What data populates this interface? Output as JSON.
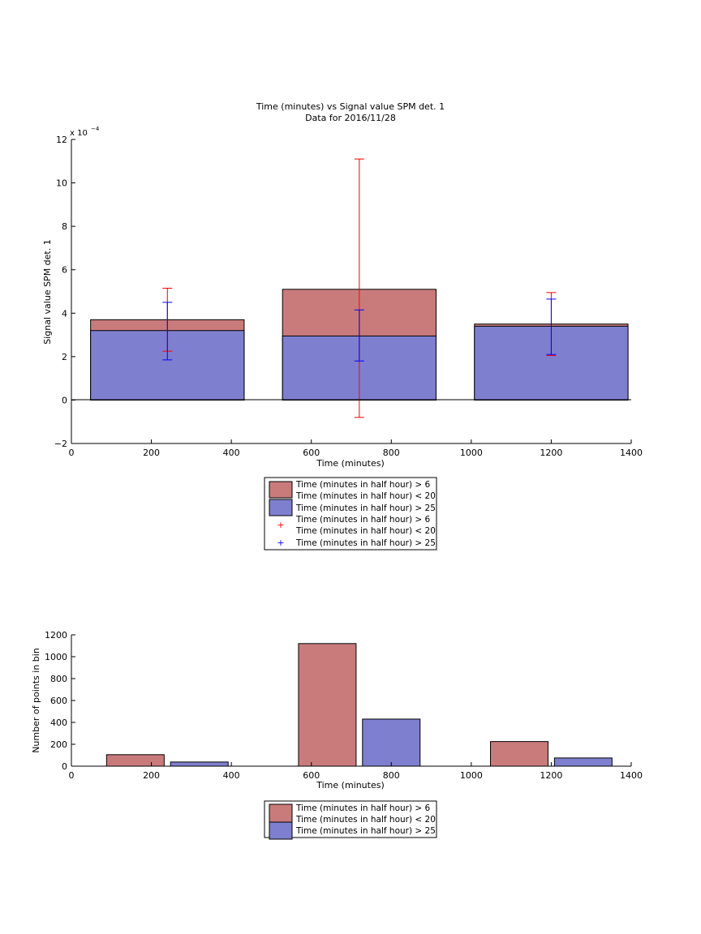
{
  "chart_data": [
    {
      "type": "bar",
      "title": "Time (minutes) vs Signal value SPM det. 1",
      "subtitle": "Data for 2016/11/28",
      "xlabel": "Time (minutes)",
      "ylabel": "Signal value SPM det. 1",
      "exponent_label": "x 10",
      "exponent_power": "−4",
      "xlim": [
        0,
        1400
      ],
      "ylim": [
        -2,
        12
      ],
      "xticks": [
        "0",
        "200",
        "400",
        "600",
        "800",
        "1000",
        "1200",
        "1400"
      ],
      "yticks": [
        "−2",
        "0",
        "2",
        "4",
        "6",
        "8",
        "10",
        "12"
      ],
      "bar_half_width": 192,
      "bars": [
        {
          "x": 240,
          "value": 3.7,
          "error_low": 2.25,
          "error_high": 5.15,
          "series": 0
        },
        {
          "x": 240,
          "value": 3.2,
          "error_low": 1.85,
          "error_high": 4.5,
          "series": 1
        },
        {
          "x": 720,
          "value": 5.1,
          "error_low": -0.8,
          "error_high": 11.1,
          "series": 0
        },
        {
          "x": 720,
          "value": 2.95,
          "error_low": 1.8,
          "error_high": 4.15,
          "series": 1
        },
        {
          "x": 1200,
          "value": 3.5,
          "error_low": 2.05,
          "error_high": 4.95,
          "series": 0
        },
        {
          "x": 1200,
          "value": 3.4,
          "error_low": 2.1,
          "error_high": 4.65,
          "series": 1
        }
      ],
      "legend": [
        {
          "line1": "Time (minutes in half hour) > 6",
          "line2": "Time (minutes in half hour) < 20",
          "kind": "patch",
          "color": "#c97b7b"
        },
        {
          "line1": "Time (minutes in half hour) > 25",
          "line2": "",
          "kind": "patch",
          "color": "#7f7fcf"
        },
        {
          "line1": "Time (minutes in half hour) > 6",
          "line2": "Time (minutes in half hour) < 20",
          "kind": "marker",
          "color": "#ff0000"
        },
        {
          "line1": "Time (minutes in half hour) > 25",
          "line2": "",
          "kind": "marker",
          "color": "#0000ff"
        }
      ],
      "legend_placement": "below"
    },
    {
      "type": "bar",
      "xlabel": "Time (minutes)",
      "ylabel": "Number of points in bin",
      "xlim": [
        0,
        1400
      ],
      "ylim": [
        0,
        1200
      ],
      "xticks": [
        "0",
        "200",
        "400",
        "600",
        "800",
        "1000",
        "1200",
        "1400"
      ],
      "yticks": [
        "0",
        "200",
        "400",
        "600",
        "800",
        "1000",
        "1200"
      ],
      "bar_width": 144,
      "bars": [
        {
          "x": 160,
          "value": 105,
          "series": 0
        },
        {
          "x": 320,
          "value": 38,
          "series": 1
        },
        {
          "x": 640,
          "value": 1120,
          "series": 0
        },
        {
          "x": 800,
          "value": 430,
          "series": 1
        },
        {
          "x": 1120,
          "value": 225,
          "series": 0
        },
        {
          "x": 1280,
          "value": 75,
          "series": 1
        }
      ],
      "legend": [
        {
          "line1": "Time (minutes in half hour) > 6",
          "line2": "Time (minutes in half hour) < 20",
          "kind": "patch",
          "color": "#c97b7b"
        },
        {
          "line1": "Time (minutes in half hour) > 25",
          "line2": "",
          "kind": "patch",
          "color": "#7f7fcf"
        }
      ],
      "legend_placement": "below"
    }
  ],
  "colors": {
    "series0": "#c97b7b",
    "series1": "#7f7fcf",
    "err0": "#ff0000",
    "err1": "#0000ff"
  }
}
